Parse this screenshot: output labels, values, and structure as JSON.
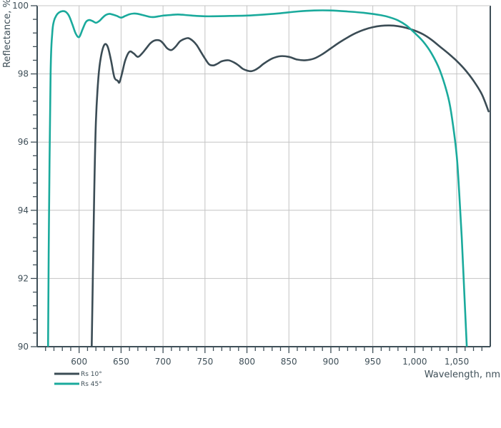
{
  "chart_data": {
    "type": "line",
    "title": "",
    "xlabel": "Wavelength, nm",
    "ylabel": "Reflectance, %",
    "xlim": [
      550,
      1090
    ],
    "ylim": [
      90,
      100
    ],
    "grid": true,
    "legend_position": "bottom-left",
    "x_ticks": [
      600,
      650,
      700,
      750,
      800,
      850,
      900,
      950,
      1000,
      1050
    ],
    "x_tick_labels": [
      "600",
      "650",
      "700",
      "750",
      "800",
      "850",
      "900",
      "950",
      "1,000",
      "1,050"
    ],
    "y_ticks": [
      90,
      92,
      94,
      96,
      98,
      100
    ],
    "y_tick_labels": [
      "90",
      "92",
      "94",
      "96",
      "98",
      "100"
    ],
    "series": [
      {
        "name": "Rs 10°",
        "color": "#3b4c55",
        "x": [
          615,
          616,
          618,
          620,
          623,
          626,
          630,
          634,
          638,
          642,
          646,
          648,
          651,
          655,
          660,
          665,
          670,
          675,
          680,
          685,
          690,
          696,
          700,
          705,
          710,
          715,
          720,
          725,
          730,
          735,
          740,
          745,
          750,
          755,
          760,
          765,
          770,
          778,
          785,
          790,
          795,
          800,
          805,
          810,
          815,
          820,
          830,
          840,
          850,
          860,
          870,
          880,
          890,
          900,
          910,
          920,
          930,
          940,
          950,
          960,
          970,
          980,
          990,
          1000,
          1010,
          1020,
          1030,
          1040,
          1050,
          1060,
          1070,
          1080,
          1088
        ],
        "y": [
          90,
          91.5,
          94.5,
          96.6,
          97.9,
          98.5,
          98.85,
          98.8,
          98.4,
          97.9,
          97.8,
          97.75,
          98.0,
          98.4,
          98.65,
          98.6,
          98.5,
          98.6,
          98.75,
          98.9,
          98.98,
          98.98,
          98.9,
          98.75,
          98.7,
          98.8,
          98.95,
          99.02,
          99.05,
          98.98,
          98.85,
          98.65,
          98.45,
          98.28,
          98.25,
          98.3,
          98.37,
          98.4,
          98.33,
          98.25,
          98.15,
          98.1,
          98.08,
          98.12,
          98.2,
          98.3,
          98.45,
          98.52,
          98.5,
          98.42,
          98.4,
          98.45,
          98.58,
          98.75,
          98.92,
          99.07,
          99.2,
          99.3,
          99.37,
          99.41,
          99.42,
          99.4,
          99.35,
          99.27,
          99.16,
          99.0,
          98.8,
          98.6,
          98.38,
          98.12,
          97.8,
          97.4,
          96.9
        ]
      },
      {
        "name": "Rs 45°",
        "color": "#1aaa9c",
        "x": [
          563,
          564,
          566,
          568,
          570,
          573,
          576,
          580,
          584,
          588,
          592,
          596,
          600,
          604,
          608,
          612,
          616,
          620,
          624,
          628,
          632,
          636,
          640,
          645,
          650,
          655,
          660,
          665,
          670,
          675,
          680,
          685,
          690,
          695,
          700,
          705,
          710,
          715,
          720,
          730,
          740,
          750,
          760,
          780,
          800,
          820,
          840,
          860,
          880,
          900,
          920,
          940,
          960,
          970,
          980,
          990,
          1000,
          1010,
          1020,
          1030,
          1040,
          1045,
          1050,
          1053,
          1056,
          1059,
          1062
        ],
        "y": [
          90,
          93.5,
          98.0,
          99.2,
          99.55,
          99.72,
          99.8,
          99.84,
          99.82,
          99.7,
          99.45,
          99.18,
          99.08,
          99.3,
          99.52,
          99.58,
          99.55,
          99.5,
          99.55,
          99.65,
          99.73,
          99.76,
          99.74,
          99.7,
          99.65,
          99.7,
          99.75,
          99.77,
          99.76,
          99.73,
          99.7,
          99.67,
          99.67,
          99.69,
          99.71,
          99.72,
          99.73,
          99.74,
          99.74,
          99.72,
          99.7,
          99.69,
          99.69,
          99.7,
          99.71,
          99.74,
          99.78,
          99.83,
          99.86,
          99.86,
          99.83,
          99.79,
          99.72,
          99.66,
          99.57,
          99.42,
          99.2,
          98.95,
          98.6,
          98.1,
          97.3,
          96.6,
          95.6,
          94.5,
          93.2,
          91.6,
          90
        ]
      }
    ]
  }
}
